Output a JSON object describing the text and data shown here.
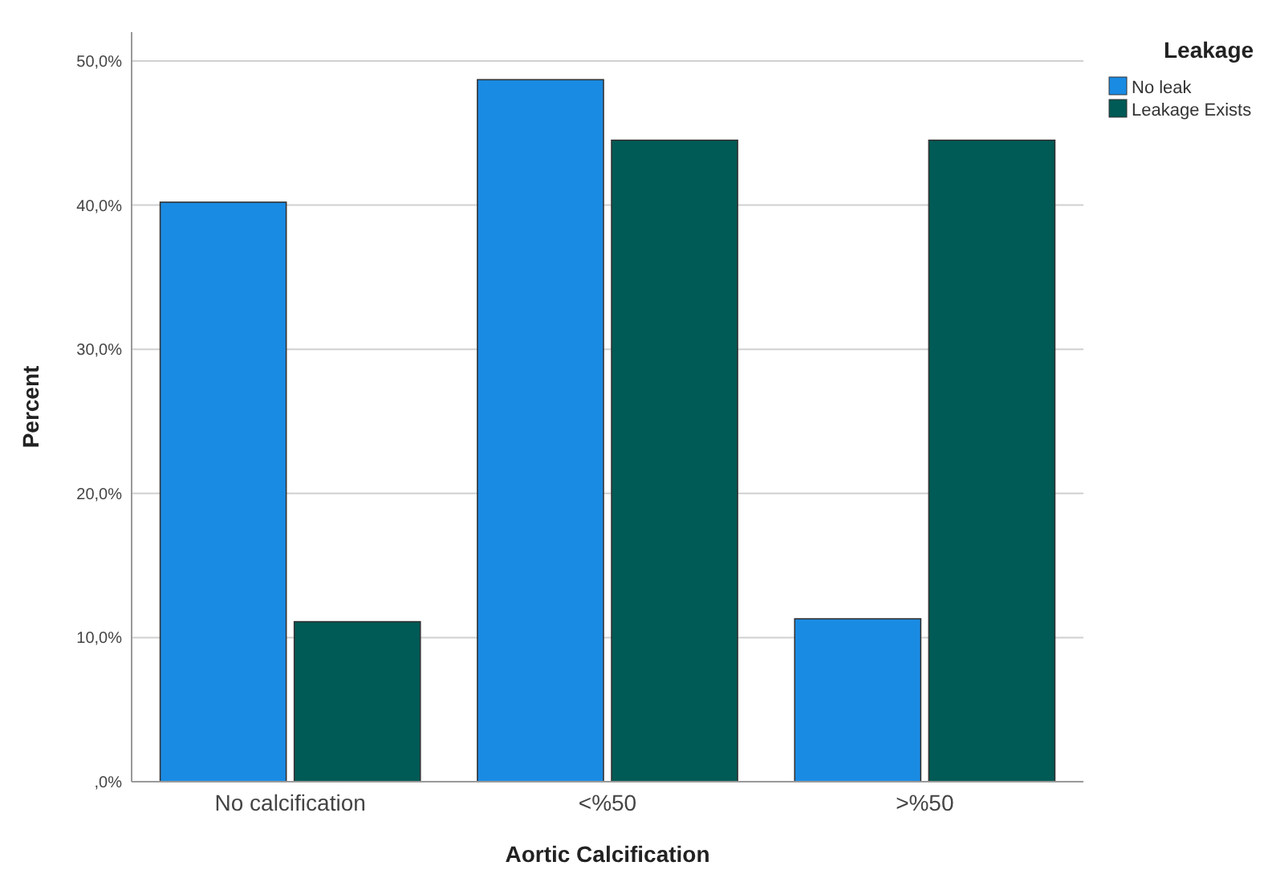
{
  "chart_data": {
    "type": "bar",
    "xlabel": "Aortic Calcification",
    "ylabel": "Percent",
    "legend_title": "Leakage",
    "categories": [
      "No calcification",
      "<%50",
      ">%50"
    ],
    "series": [
      {
        "name": "No leak",
        "color": "#1a8be3",
        "values": [
          40.2,
          48.7,
          11.3
        ]
      },
      {
        "name": "Leakage Exists",
        "color": "#005a55",
        "values": [
          11.1,
          44.5,
          44.5
        ]
      }
    ],
    "ylim": [
      0,
      52
    ],
    "yticks": [
      {
        "value": 0,
        "label": ",0%"
      },
      {
        "value": 10,
        "label": "10,0%"
      },
      {
        "value": 20,
        "label": "20,0%"
      },
      {
        "value": 30,
        "label": "30,0%"
      },
      {
        "value": 40,
        "label": "40,0%"
      },
      {
        "value": 50,
        "label": "50,0%"
      }
    ],
    "grid": "y",
    "legend": "top right"
  }
}
